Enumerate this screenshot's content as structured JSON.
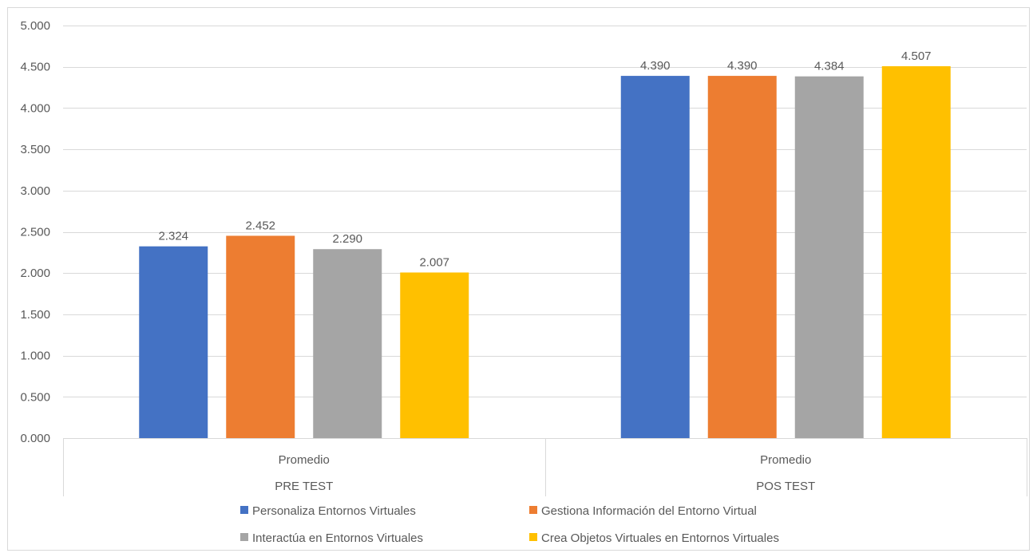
{
  "chart_data": {
    "type": "bar",
    "title": "",
    "xlabel": "",
    "ylabel": "",
    "ylim": [
      0,
      5
    ],
    "y_ticks": [
      "0.000",
      "0.500",
      "1.000",
      "1.500",
      "2.000",
      "2.500",
      "3.000",
      "3.500",
      "4.000",
      "4.500",
      "5.000"
    ],
    "grid": true,
    "legend_position": "bottom",
    "categories": [
      {
        "inner": "Promedio",
        "outer": "PRE TEST"
      },
      {
        "inner": "Promedio",
        "outer": "POS TEST"
      }
    ],
    "series": [
      {
        "name": "Personaliza Entornos Virtuales",
        "color": "#4472C4",
        "values": [
          2.324,
          4.39
        ],
        "labels": [
          "2.324",
          "4.390"
        ]
      },
      {
        "name": "Gestiona Información del Entorno Virtual",
        "color": "#ED7D31",
        "values": [
          2.452,
          4.39
        ],
        "labels": [
          "2.452",
          "4.390"
        ]
      },
      {
        "name": "Interactúa en Entornos Virtuales",
        "color": "#A5A5A5",
        "values": [
          2.29,
          4.384
        ],
        "labels": [
          "2.290",
          "4.384"
        ]
      },
      {
        "name": "Crea Objetos Virtuales en Entornos Virtuales",
        "color": "#FFC000",
        "values": [
          2.007,
          4.507
        ],
        "labels": [
          "2.007",
          "4.507"
        ]
      }
    ]
  }
}
